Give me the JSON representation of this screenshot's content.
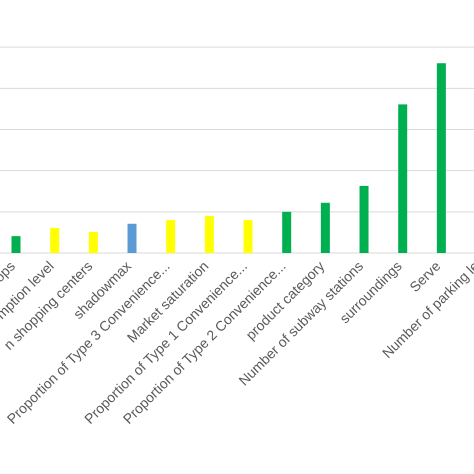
{
  "chart_data": {
    "type": "bar",
    "categories": [
      "stops",
      "mption level",
      "n shopping centers",
      "shadowmax",
      "Proportion of Type 3 Convenience...",
      "Market saturation",
      "Proportion of Type 1 Convenience...",
      "Proportion of Type 2 Convenience...",
      "product category",
      "Number of subway stations",
      "surroundings",
      "Serve",
      "Number of parking le"
    ],
    "values": [
      0.41,
      0.61,
      0.51,
      0.71,
      0.8,
      0.9,
      0.8,
      1.0,
      1.22,
      1.63,
      3.61,
      4.61,
      null
    ],
    "colors": [
      "#00b050",
      "#ffff00",
      "#ffff00",
      "#5b9bd5",
      "#ffff00",
      "#ffff00",
      "#ffff00",
      "#00b050",
      "#00b050",
      "#00b050",
      "#00b050",
      "#00b050",
      "#00b050"
    ],
    "ylim": [
      0,
      6
    ],
    "yticks": [
      0,
      1,
      2,
      3,
      4,
      5
    ],
    "grid": true
  }
}
